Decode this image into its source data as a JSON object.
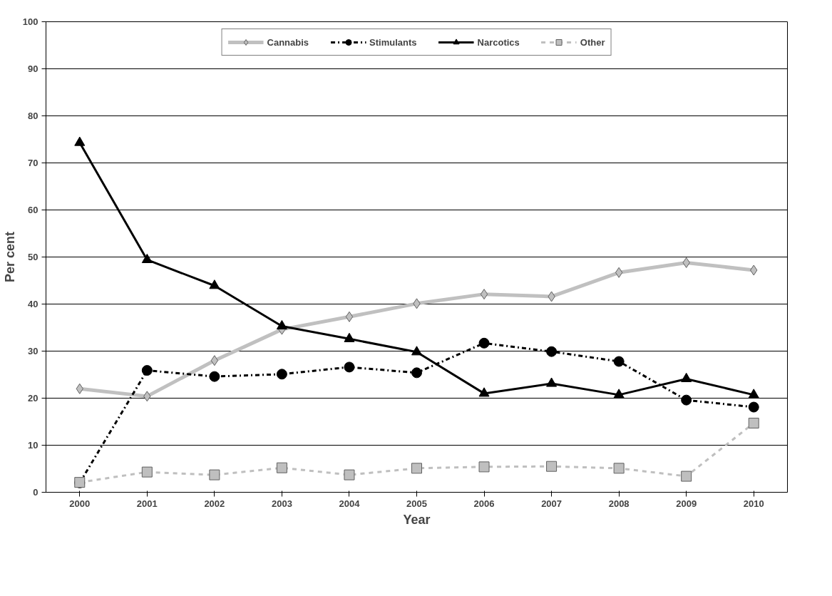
{
  "chart_data": {
    "type": "line",
    "xlabel": "Year",
    "ylabel": "Per cent",
    "categories": [
      "2000",
      "2001",
      "2002",
      "2003",
      "2004",
      "2005",
      "2006",
      "2007",
      "2008",
      "2009",
      "2010"
    ],
    "ylim": [
      0,
      100
    ],
    "yticks": [
      0,
      10,
      20,
      30,
      40,
      50,
      60,
      70,
      80,
      90,
      100
    ],
    "grid": "y",
    "legend": "top",
    "series": [
      {
        "name": "Cannabis",
        "color": "#c0c0c0",
        "marker": "diamond",
        "line_style": "solid",
        "values": [
          22.0,
          20.4,
          28.0,
          34.6,
          37.3,
          40.1,
          42.1,
          41.6,
          46.7,
          48.8,
          47.2
        ]
      },
      {
        "name": "Stimulants",
        "color": "#000000",
        "marker": "circle",
        "line_style": "dashdot",
        "values": [
          2.0,
          25.9,
          24.6,
          25.1,
          26.6,
          25.4,
          31.7,
          29.9,
          27.8,
          19.6,
          18.1
        ]
      },
      {
        "name": "Narcotics",
        "color": "#000000",
        "marker": "triangle",
        "line_style": "solid",
        "values": [
          74.3,
          49.4,
          43.9,
          35.3,
          32.6,
          29.8,
          21.0,
          23.1,
          20.7,
          24.1,
          20.7
        ]
      },
      {
        "name": "Other",
        "color": "#bfbfbf",
        "marker": "square",
        "line_style": "dashed",
        "values": [
          2.1,
          4.3,
          3.7,
          5.2,
          3.7,
          5.1,
          5.4,
          5.5,
          5.1,
          3.4,
          14.7
        ]
      }
    ]
  }
}
